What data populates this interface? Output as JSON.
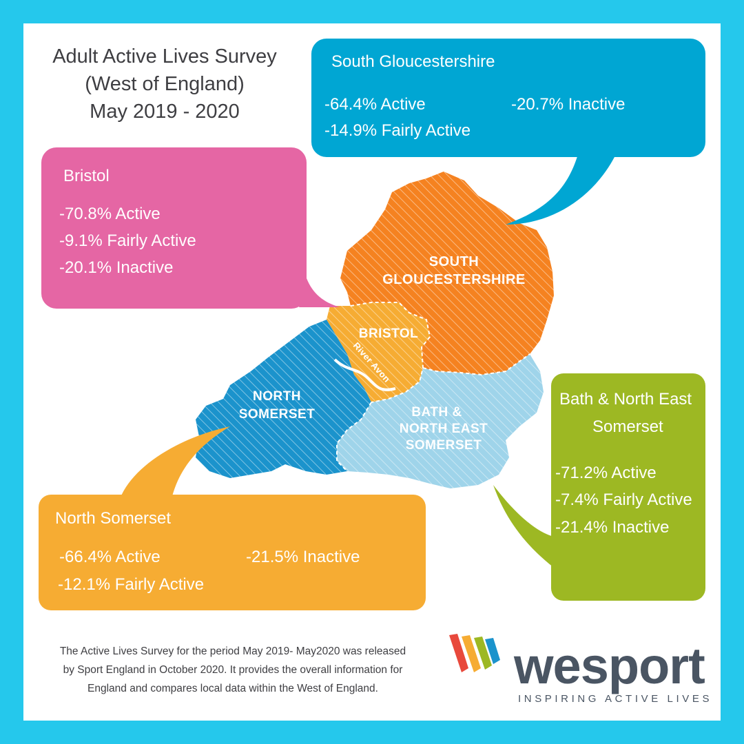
{
  "title": {
    "line1": "Adult Active Lives Survey",
    "line2": "(West of England)",
    "line3": "May 2019 - 2020"
  },
  "colors": {
    "frame": "#25c8ec",
    "south_gloucestershire": "#00a6d3",
    "bristol": "#e566a4",
    "north_somerset": "#f6ac33",
    "bath": "#9db823",
    "map_south_gloucestershire": "#f58220",
    "map_bristol": "#f6ac33",
    "map_north_somerset": "#1b93cc",
    "map_bath": "#9fd4ea"
  },
  "regions": {
    "south_gloucestershire": {
      "name": "South Gloucestershire",
      "active": "-64.4% Active",
      "inactive": "-20.7% Inactive",
      "fairly": "-14.9% Fairly Active"
    },
    "bristol": {
      "name": "Bristol",
      "active": "-70.8% Active",
      "fairly": "-9.1% Fairly Active",
      "inactive": "-20.1% Inactive"
    },
    "bath": {
      "name_line1": "Bath & North  East",
      "name_line2": "Somerset",
      "active": "-71.2% Active",
      "fairly": "-7.4% Fairly Active",
      "inactive": "-21.4% Inactive"
    },
    "north_somerset": {
      "name": "North Somerset",
      "active": "-66.4% Active",
      "inactive": "-21.5% Inactive",
      "fairly": "-12.1% Fairly Active"
    }
  },
  "map": {
    "south_gloucestershire_l1": "SOUTH",
    "south_gloucestershire_l2": "GLOUCESTERSHIRE",
    "bristol": "BRISTOL",
    "river": "River Avon",
    "north_somerset_l1": "NORTH",
    "north_somerset_l2": "SOMERSET",
    "bath_l1": "BATH &",
    "bath_l2": "NORTH EAST",
    "bath_l3": "SOMERSET"
  },
  "footnote": {
    "line1": "The Active Lives Survey for the period May 2019- May2020 was released",
    "line2": "by Sport England in October 2020. It provides the overall information for",
    "line3": "England and compares local data within the West of England."
  },
  "logo": {
    "word": "wesport",
    "tagline": "INSPIRING ACTIVE LIVES",
    "icon": "wesport-stripes-logo"
  }
}
